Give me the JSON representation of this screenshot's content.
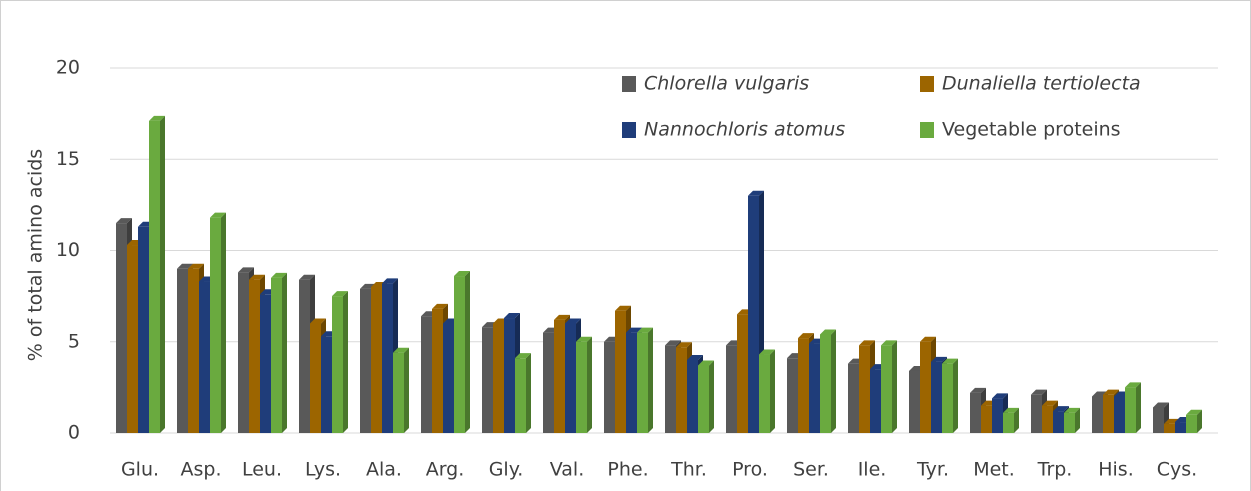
{
  "chart_data": {
    "type": "bar",
    "y_label": "% of total amino acids",
    "categories": [
      "Glu.",
      "Asp.",
      "Leu.",
      "Lys.",
      "Ala.",
      "Arg.",
      "Gly.",
      "Val.",
      "Phe.",
      "Thr.",
      "Pro.",
      "Ser.",
      "Ile.",
      "Tyr.",
      "Met.",
      "Trp.",
      "His.",
      "Cys."
    ],
    "series": [
      {
        "name": "Chlorella vulgaris",
        "color": "#595959",
        "values": [
          11.5,
          9.0,
          8.8,
          8.4,
          7.9,
          6.4,
          5.8,
          5.5,
          5.0,
          4.8,
          4.8,
          4.1,
          3.8,
          3.4,
          2.2,
          2.1,
          2.0,
          1.4
        ]
      },
      {
        "name": "Dunaliella tertiolecta",
        "color": "#9c6500",
        "values": [
          10.3,
          9.0,
          8.4,
          6.0,
          8.0,
          6.8,
          6.0,
          6.2,
          6.7,
          4.7,
          6.5,
          5.2,
          4.8,
          5.0,
          1.5,
          1.5,
          2.1,
          0.5
        ]
      },
      {
        "name": "Nannochloris atomus",
        "color": "#1f3d7a",
        "values": [
          11.3,
          8.3,
          7.6,
          5.3,
          8.2,
          6.0,
          6.3,
          6.0,
          5.5,
          4.0,
          13.0,
          4.9,
          3.5,
          3.9,
          1.9,
          1.2,
          2.0,
          0.6
        ]
      },
      {
        "name": "Vegetable proteins",
        "color": "#6aaa3f",
        "values": [
          17.1,
          11.8,
          8.5,
          7.5,
          4.4,
          8.6,
          4.1,
          5.0,
          5.5,
          3.7,
          4.3,
          5.4,
          4.8,
          3.8,
          1.1,
          1.1,
          2.5,
          1.0
        ]
      }
    ],
    "ylim": [
      0,
      20
    ],
    "yticks": [
      0,
      5,
      10,
      15,
      20
    ],
    "grid": true,
    "legend": "top-right"
  }
}
